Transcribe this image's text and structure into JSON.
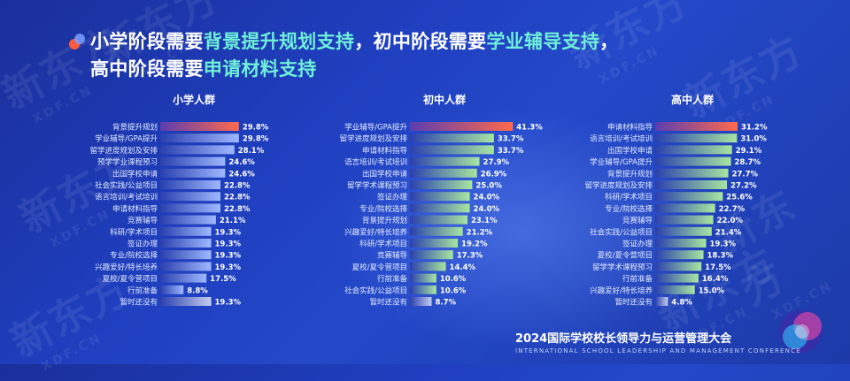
{
  "headline": {
    "line1_a": "小学阶段需要",
    "line1_b": "背景提升规划支持",
    "line1_c": "，初中阶段需要",
    "line1_d": "学业辅导支持",
    "line1_e": "，",
    "line2_a": "高中阶段需要",
    "line2_b": "申请材料支持"
  },
  "footer": {
    "title": "2024国际学校校长领导力与运营管理大会",
    "subtitle": "INTERNATIONAL SCHOOL LEADERSHIP AND MANAGEMENT CONFERENCE"
  },
  "watermark": {
    "text": "新东方",
    "sub": "XDF.CN"
  },
  "colors": {
    "highlight": "#6ff0d8",
    "top_bar": "#ff6a4c",
    "bar_start": "#2a3fae",
    "bar_end_green": "#a8e6a0",
    "bar_end_blue": "#9fb8ff"
  },
  "chart_data": [
    {
      "type": "bar",
      "orientation": "horizontal",
      "title": "小学人群",
      "categories": [
        "背景提升规划",
        "学业辅导/GPA提升",
        "留学进度规划及安排",
        "预学学业课程预习",
        "出国学校申请",
        "社会实践/公益项目",
        "语言培训/考试培训",
        "申请材料指导",
        "竞赛辅导",
        "科研/学术项目",
        "签证办理",
        "专业/院校选择",
        "兴趣爱好/特长培养",
        "夏校/夏令营项目",
        "行前准备",
        "暂时还没有"
      ],
      "values": [
        29.8,
        29.8,
        28.1,
        24.6,
        24.6,
        22.8,
        22.8,
        22.8,
        21.1,
        19.3,
        19.3,
        19.3,
        19.3,
        17.5,
        8.8,
        19.3
      ],
      "unit": "%"
    },
    {
      "type": "bar",
      "orientation": "horizontal",
      "title": "初中人群",
      "categories": [
        "学业辅导/GPA提升",
        "留学进度规划及安排",
        "申请材料指导",
        "语言培训/考试培训",
        "出国学校申请",
        "留学学术课程预习",
        "签证办理",
        "专业/院校选择",
        "背景提升规划",
        "兴趣爱好/特长培养",
        "科研/学术项目",
        "竞赛辅导",
        "夏校/夏令营项目",
        "行前准备",
        "社会实践/公益项目",
        "暂时还没有"
      ],
      "values": [
        41.3,
        33.7,
        33.7,
        27.9,
        26.9,
        25.0,
        24.0,
        24.0,
        23.1,
        21.2,
        19.2,
        17.3,
        14.4,
        10.6,
        10.6,
        8.7
      ],
      "unit": "%"
    },
    {
      "type": "bar",
      "orientation": "horizontal",
      "title": "高中人群",
      "categories": [
        "申请材料指导",
        "语言培训/考试培训",
        "出国学校申请",
        "学业辅导/GPA提升",
        "背景提升规划",
        "留学进度规划及安排",
        "科研/学术项目",
        "专业/院校选择",
        "竞赛辅导",
        "社会实践/公益项目",
        "签证办理",
        "夏校/夏令营项目",
        "留学学术课程预习",
        "行前准备",
        "兴趣爱好/特长培养",
        "暂时还没有"
      ],
      "values": [
        31.2,
        31.0,
        29.1,
        28.7,
        27.7,
        27.2,
        25.6,
        22.7,
        22.0,
        21.4,
        19.3,
        18.3,
        17.5,
        16.4,
        15.0,
        4.8
      ],
      "unit": "%"
    }
  ]
}
